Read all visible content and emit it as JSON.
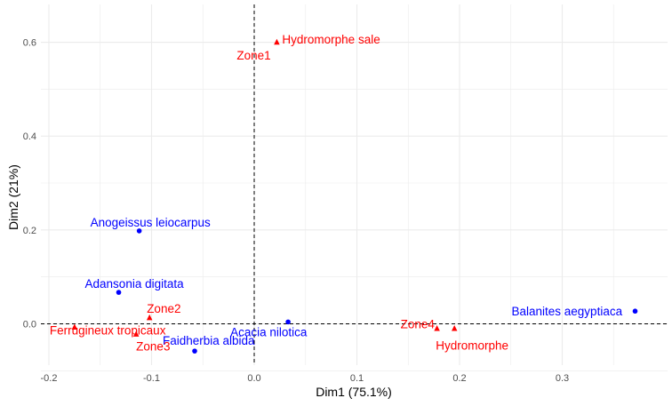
{
  "chart_data": {
    "type": "scatter",
    "title": "",
    "xlabel": "Dim1 (75.1%)",
    "ylabel": "Dim2 (21%)",
    "xlim": [
      -0.2,
      0.39
    ],
    "ylim": [
      -0.1,
      0.63
    ],
    "x_ticks": [
      -0.2,
      -0.1,
      0.0,
      0.1,
      0.2,
      0.3
    ],
    "x_tick_labels": [
      "-0.2",
      "-0.1",
      "0.0",
      "0.1",
      "0.2",
      "0.3"
    ],
    "y_ticks": [
      0.0,
      0.2,
      0.4,
      0.6
    ],
    "y_tick_labels": [
      "0.0",
      "0.2",
      "0.4",
      "0.6"
    ],
    "grid": true,
    "reference_lines": {
      "x": 0,
      "y": 0,
      "style": "dashed"
    },
    "colors": {
      "rows": "#0000ff",
      "columns": "#ff0000",
      "grid": "#ebebeb",
      "tick_text": "#4d4d4d"
    },
    "series": [
      {
        "marker": "circle",
        "color": "#0000ff",
        "points": [
          {
            "label": "Anogeissus leiocarpus",
            "x": -0.112,
            "y": 0.198
          },
          {
            "label": "Adansonia digitata",
            "x": -0.132,
            "y": 0.067
          },
          {
            "label": "Acacia nilotica",
            "x": 0.033,
            "y": 0.004
          },
          {
            "label": "Faidherbia albida",
            "x": -0.058,
            "y": -0.058
          },
          {
            "label": "Balanites aegyptiaca",
            "x": 0.371,
            "y": 0.027
          }
        ]
      },
      {
        "marker": "triangle",
        "color": "#ff0000",
        "points": [
          {
            "label": "Hydromorphe sale",
            "x": 0.022,
            "y": 0.599
          },
          {
            "label": "Zone1",
            "x": 0.022,
            "y": 0.599
          },
          {
            "label": "Zone2",
            "x": -0.102,
            "y": 0.012
          },
          {
            "label": "Ferrugineux tropicaux",
            "x": -0.175,
            "y": -0.008
          },
          {
            "label": "Zone3",
            "x": -0.115,
            "y": -0.023
          },
          {
            "label": "Zone4",
            "x": 0.178,
            "y": -0.011
          },
          {
            "label": "Hydromorphe",
            "x": 0.195,
            "y": -0.011
          }
        ]
      }
    ]
  }
}
